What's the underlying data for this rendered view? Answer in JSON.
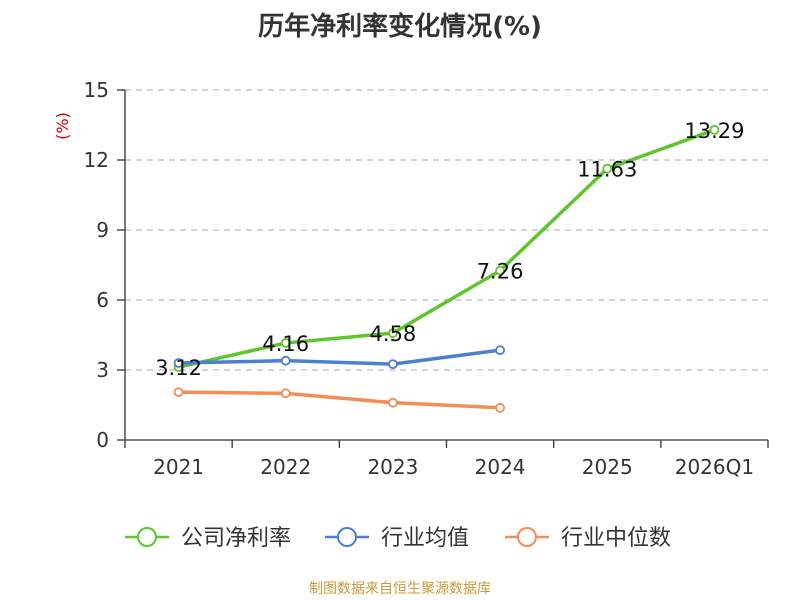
{
  "title": "历年净利率变化情况(%)",
  "footer": "制图数据来自恒生聚源数据库",
  "colors": {
    "company": "#5cc62c",
    "industry_avg": "#4a7fd4",
    "industry_median": "#f58c55",
    "grid": "#bbbbbb",
    "axis": "#333333",
    "unit": "#cc0000"
  },
  "chart_data": {
    "type": "line",
    "title": "历年净利率变化情况(%)",
    "ylabel": "(%)",
    "categories": [
      "2021",
      "2022",
      "2023",
      "2024",
      "2025",
      "2026Q1"
    ],
    "ylim": [
      0,
      15
    ],
    "yticks": [
      0,
      3,
      6,
      9,
      12,
      15
    ],
    "grid": true,
    "legend_position": "bottom",
    "series": [
      {
        "name": "公司净利率",
        "values": [
          3.12,
          4.16,
          4.58,
          7.26,
          11.63,
          13.29
        ],
        "labels": [
          "3.12",
          "4.16",
          "4.58",
          "7.26",
          "11.63",
          "13.29"
        ],
        "color": "#5cc62c"
      },
      {
        "name": "行业均值",
        "values": [
          3.3,
          3.4,
          3.25,
          3.85,
          null,
          null
        ],
        "color": "#4a7fd4"
      },
      {
        "name": "行业中位数",
        "values": [
          2.05,
          2.0,
          1.6,
          1.38,
          null,
          null
        ],
        "color": "#f58c55"
      }
    ]
  }
}
